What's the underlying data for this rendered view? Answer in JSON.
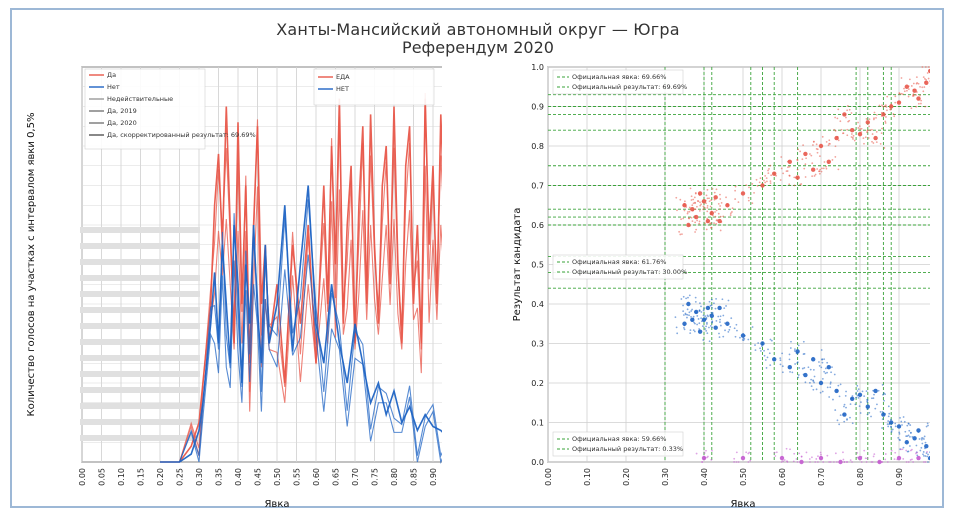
{
  "title": "Ханты-Мансийский автономный округ — Югра",
  "subtitle": "Референдум 2020",
  "chart_data": [
    {
      "type": "line",
      "xlabel": "Явка",
      "ylabel": "Количество голосов на участках с интервалом явки 0,5%",
      "xlim": [
        0,
        1
      ],
      "ylim": [
        0,
        100
      ],
      "x_ticks": [
        "0.00",
        "0.05",
        "0.10",
        "0.15",
        "0.20",
        "0.25",
        "0.30",
        "0.35",
        "0.40",
        "0.45",
        "0.50",
        "0.55",
        "0.60",
        "0.65",
        "0.70",
        "0.75",
        "0.80",
        "0.85",
        "0.90",
        "0.95",
        "1.00"
      ],
      "grid": true,
      "legend_left": [
        "Да",
        "Нет",
        "Недействительные",
        "Да, 2019",
        "Да, 2020",
        "Да, скорректированный результат: 69.69%"
      ],
      "legend_right": [
        "ЕДА",
        "НЕТ"
      ],
      "series": [
        {
          "name": "Да",
          "color": "#e8574a",
          "x": [
            0.2,
            0.25,
            0.28,
            0.3,
            0.31,
            0.33,
            0.34,
            0.35,
            0.36,
            0.37,
            0.38,
            0.39,
            0.4,
            0.41,
            0.42,
            0.43,
            0.44,
            0.45,
            0.46,
            0.47,
            0.48,
            0.5,
            0.52,
            0.54,
            0.56,
            0.58,
            0.6,
            0.62,
            0.63,
            0.64,
            0.65,
            0.66,
            0.67,
            0.68,
            0.69,
            0.7,
            0.71,
            0.72,
            0.73,
            0.74,
            0.75,
            0.76,
            0.77,
            0.78,
            0.79,
            0.8,
            0.81,
            0.82,
            0.83,
            0.84,
            0.85,
            0.86,
            0.87,
            0.88,
            0.89,
            0.9,
            0.91,
            0.92,
            0.93,
            0.94,
            0.95,
            0.96,
            0.97,
            0.98,
            0.99,
            1.0
          ],
          "values": [
            0,
            0,
            4,
            10,
            20,
            40,
            65,
            78,
            55,
            90,
            60,
            30,
            86,
            40,
            70,
            25,
            60,
            85,
            40,
            55,
            30,
            45,
            20,
            55,
            35,
            60,
            25,
            70,
            40,
            80,
            50,
            92,
            35,
            60,
            75,
            30,
            65,
            85,
            40,
            88,
            55,
            35,
            70,
            80,
            45,
            90,
            50,
            30,
            75,
            85,
            40,
            60,
            30,
            92,
            55,
            75,
            40,
            88,
            60,
            35,
            80,
            95,
            50,
            20,
            5,
            0
          ]
        },
        {
          "name": "Нет",
          "color": "#1f64c4",
          "x": [
            0.2,
            0.25,
            0.28,
            0.3,
            0.31,
            0.33,
            0.34,
            0.35,
            0.36,
            0.37,
            0.38,
            0.39,
            0.4,
            0.41,
            0.42,
            0.43,
            0.44,
            0.45,
            0.46,
            0.47,
            0.48,
            0.5,
            0.52,
            0.54,
            0.56,
            0.58,
            0.6,
            0.62,
            0.64,
            0.66,
            0.68,
            0.7,
            0.72,
            0.74,
            0.76,
            0.78,
            0.8,
            0.82,
            0.84,
            0.86,
            0.88,
            0.9,
            0.92,
            0.94,
            0.96,
            0.98,
            1.0
          ],
          "values": [
            0,
            0,
            2,
            8,
            15,
            35,
            48,
            30,
            55,
            40,
            25,
            60,
            45,
            20,
            50,
            35,
            60,
            38,
            25,
            55,
            30,
            40,
            65,
            28,
            50,
            70,
            35,
            25,
            45,
            30,
            20,
            35,
            25,
            15,
            20,
            12,
            18,
            10,
            14,
            8,
            12,
            9,
            8,
            6,
            4,
            2,
            0
          ]
        }
      ]
    },
    {
      "type": "scatter",
      "xlabel": "Явка",
      "ylabel": "Результат кандидата",
      "xlim": [
        0,
        1
      ],
      "ylim": [
        0,
        1
      ],
      "x_ticks": [
        "0.00",
        "0.10",
        "0.20",
        "0.30",
        "0.40",
        "0.50",
        "0.60",
        "0.70",
        "0.80",
        "0.90",
        "1.00"
      ],
      "y_ticks": [
        "0.0",
        "0.1",
        "0.2",
        "0.3",
        "0.4",
        "0.5",
        "0.6",
        "0.7",
        "0.8",
        "0.9",
        "1.0"
      ],
      "grid": true,
      "legend_top": [
        "Официальная явка: 69.66%",
        "Официальный результат: 69.69%"
      ],
      "legend_middle": [
        "Официальная явка: 61.76%",
        "Официальный результат: 30.00%"
      ],
      "legend_bottom": [
        "Официальная явка: 59.66%",
        "Официальный результат: 0.33%"
      ],
      "clusters": [
        {
          "name": "Да",
          "color": "#e8574a",
          "points": [
            [
              0.35,
              0.65
            ],
            [
              0.38,
              0.62
            ],
            [
              0.4,
              0.66
            ],
            [
              0.42,
              0.63
            ],
            [
              0.44,
              0.61
            ],
            [
              0.36,
              0.6
            ],
            [
              0.39,
              0.68
            ],
            [
              0.43,
              0.67
            ],
            [
              0.37,
              0.64
            ],
            [
              0.41,
              0.61
            ],
            [
              0.58,
              0.73
            ],
            [
              0.62,
              0.76
            ],
            [
              0.66,
              0.78
            ],
            [
              0.7,
              0.8
            ],
            [
              0.74,
              0.82
            ],
            [
              0.78,
              0.84
            ],
            [
              0.82,
              0.86
            ],
            [
              0.86,
              0.88
            ],
            [
              0.9,
              0.91
            ],
            [
              0.94,
              0.94
            ],
            [
              0.97,
              0.96
            ],
            [
              0.99,
              0.97
            ],
            [
              0.95,
              0.92
            ],
            [
              0.88,
              0.9
            ],
            [
              0.8,
              0.83
            ],
            [
              0.84,
              0.82
            ],
            [
              0.72,
              0.76
            ],
            [
              0.64,
              0.72
            ],
            [
              0.55,
              0.7
            ],
            [
              0.5,
              0.68
            ],
            [
              0.46,
              0.65
            ],
            [
              0.92,
              0.95
            ],
            [
              0.98,
              0.99
            ],
            [
              0.76,
              0.88
            ],
            [
              0.68,
              0.74
            ]
          ]
        },
        {
          "name": "Нет",
          "color": "#1f64c4",
          "points": [
            [
              0.35,
              0.35
            ],
            [
              0.38,
              0.38
            ],
            [
              0.4,
              0.36
            ],
            [
              0.42,
              0.37
            ],
            [
              0.44,
              0.39
            ],
            [
              0.36,
              0.4
            ],
            [
              0.39,
              0.33
            ],
            [
              0.43,
              0.34
            ],
            [
              0.37,
              0.36
            ],
            [
              0.41,
              0.39
            ],
            [
              0.58,
              0.26
            ],
            [
              0.62,
              0.24
            ],
            [
              0.66,
              0.22
            ],
            [
              0.7,
              0.2
            ],
            [
              0.74,
              0.18
            ],
            [
              0.78,
              0.16
            ],
            [
              0.82,
              0.14
            ],
            [
              0.86,
              0.12
            ],
            [
              0.9,
              0.09
            ],
            [
              0.94,
              0.06
            ],
            [
              0.97,
              0.04
            ],
            [
              0.99,
              0.03
            ],
            [
              0.95,
              0.08
            ],
            [
              0.88,
              0.1
            ],
            [
              0.8,
              0.17
            ],
            [
              0.84,
              0.18
            ],
            [
              0.72,
              0.24
            ],
            [
              0.64,
              0.28
            ],
            [
              0.55,
              0.3
            ],
            [
              0.5,
              0.32
            ],
            [
              0.46,
              0.35
            ],
            [
              0.92,
              0.05
            ],
            [
              0.98,
              0.01
            ],
            [
              0.76,
              0.12
            ],
            [
              0.68,
              0.26
            ]
          ]
        },
        {
          "name": "Недействительные",
          "color": "#c45ad0",
          "points": [
            [
              0.4,
              0.01
            ],
            [
              0.5,
              0.01
            ],
            [
              0.6,
              0.01
            ],
            [
              0.7,
              0.01
            ],
            [
              0.8,
              0.01
            ],
            [
              0.9,
              0.01
            ],
            [
              0.95,
              0.01
            ],
            [
              0.65,
              0.0
            ],
            [
              0.75,
              0.0
            ],
            [
              0.85,
              0.0
            ]
          ]
        }
      ],
      "reference_lines_x": [
        0.3,
        0.4,
        0.42,
        0.52,
        0.55,
        0.58,
        0.64,
        0.79,
        0.82,
        0.86,
        0.88
      ],
      "reference_lines_y": [
        0.44,
        0.48,
        0.52,
        0.6,
        0.62,
        0.64,
        0.7,
        0.75,
        0.84,
        0.88,
        0.9,
        0.93
      ]
    }
  ]
}
